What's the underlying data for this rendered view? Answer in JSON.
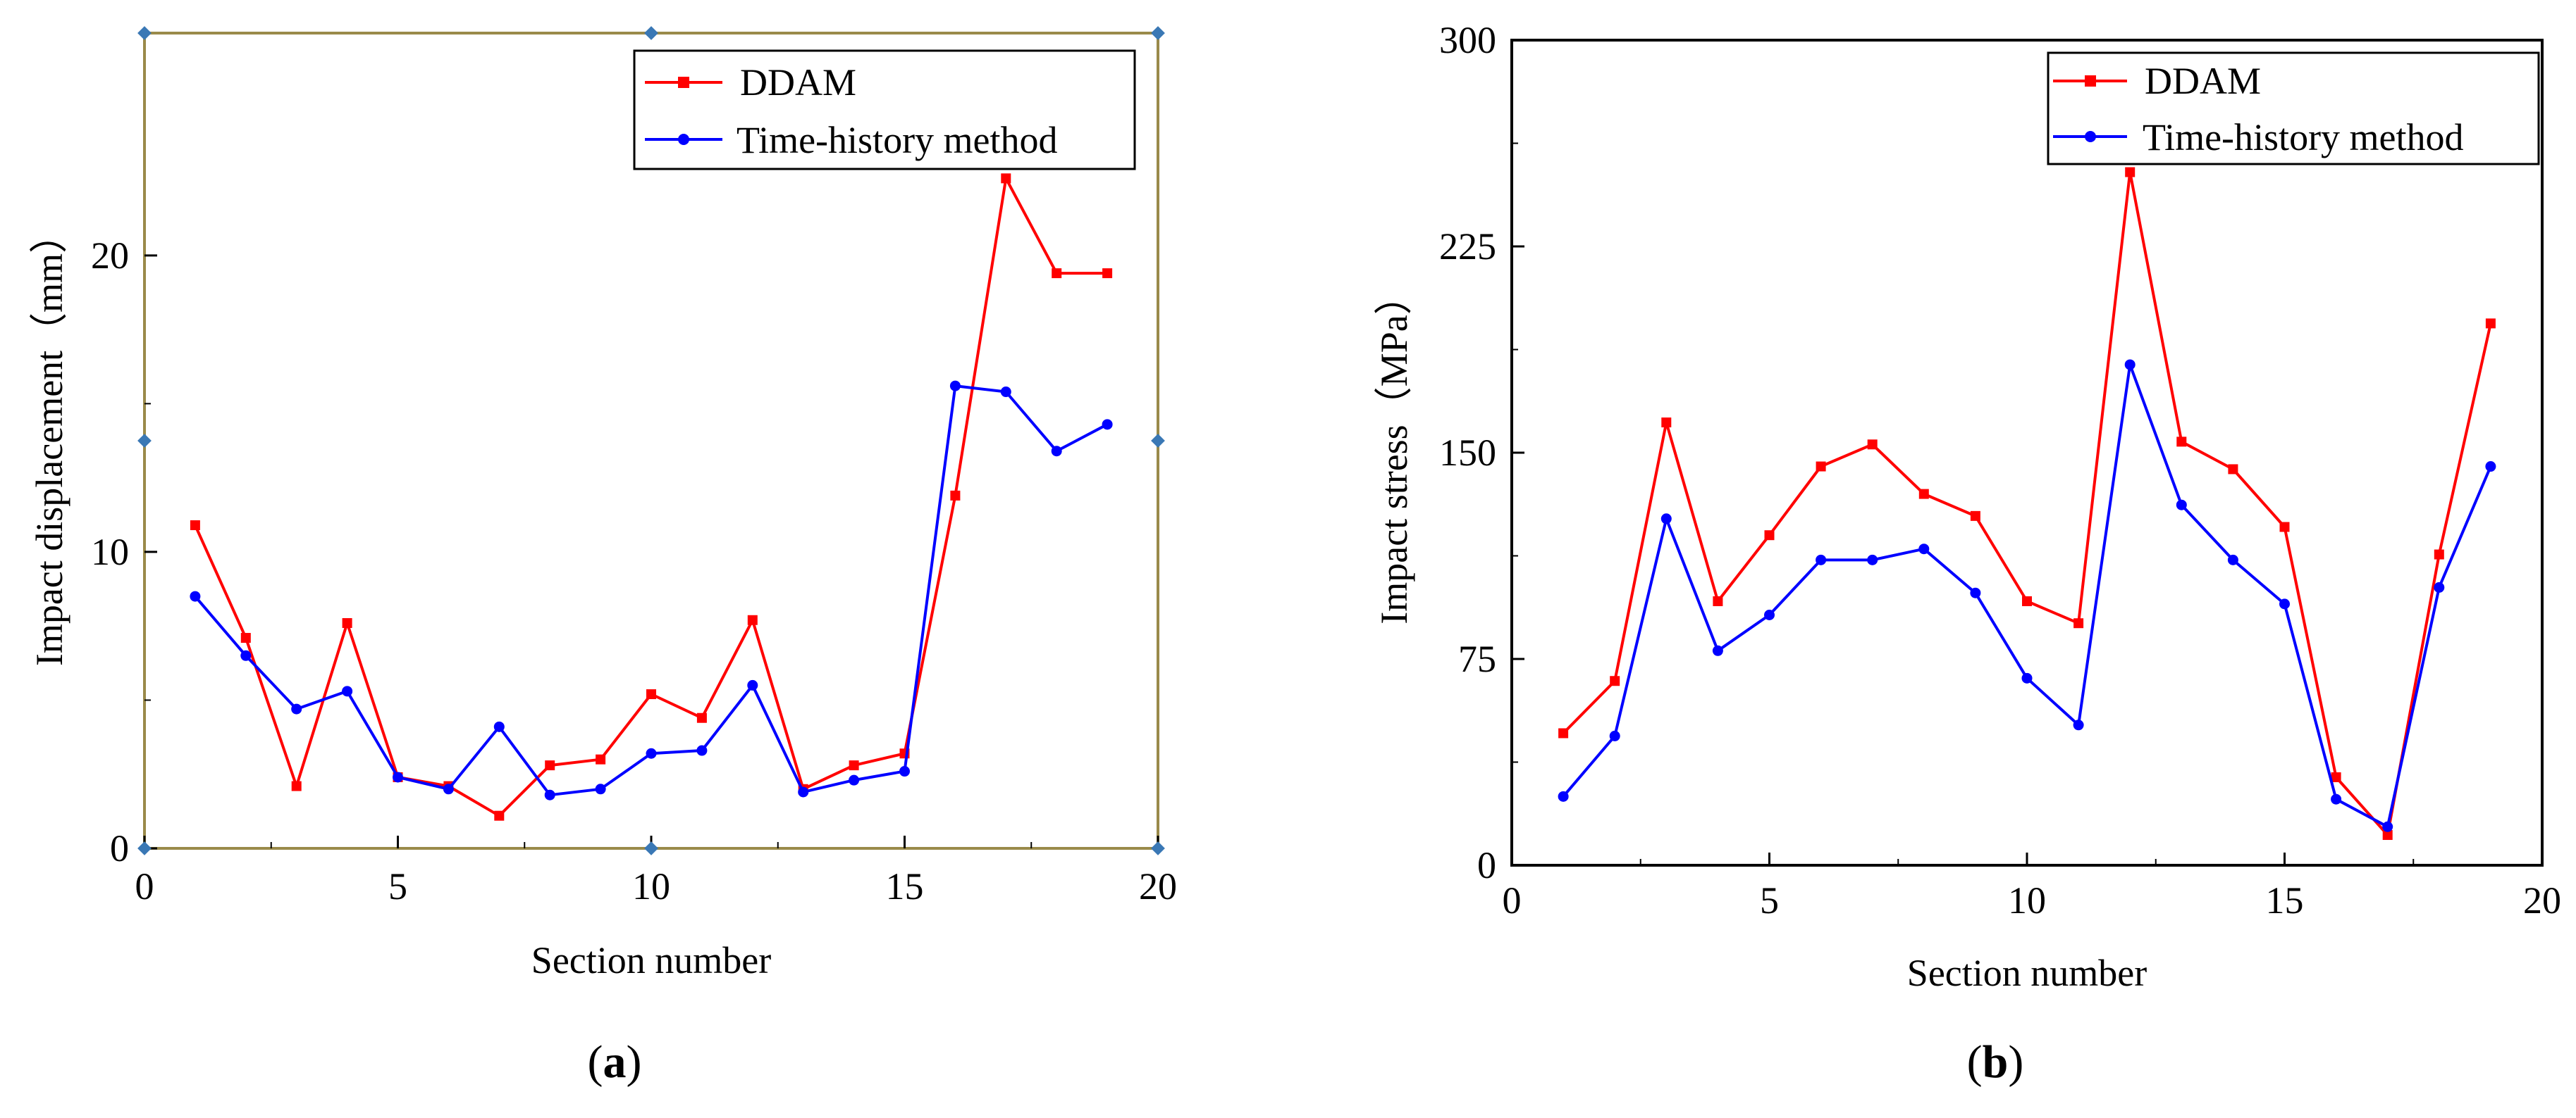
{
  "chart_data": [
    {
      "type": "line",
      "panel_label": "a",
      "title": "",
      "xlabel": "Section number",
      "ylabel": "Impact displacement（mm）",
      "xlim": [
        0,
        20
      ],
      "ylim": [
        0,
        27.5
      ],
      "xticks": [
        0,
        5,
        10,
        15,
        20
      ],
      "yticks": [
        0,
        10,
        20
      ],
      "xtick_labels": [
        "0",
        "5",
        "10",
        "15",
        "20"
      ],
      "ytick_labels": [
        "0",
        "10",
        "20"
      ],
      "grid": false,
      "legend_position": "top-right",
      "x": [
        1,
        2,
        3,
        4,
        5,
        6,
        7,
        8,
        9,
        10,
        11,
        12,
        13,
        14,
        15,
        16,
        17,
        18,
        19
      ],
      "series": [
        {
          "name": "DDAM",
          "color": "#ff0000",
          "marker": "square",
          "values": [
            10.9,
            7.1,
            2.1,
            7.6,
            2.4,
            2.1,
            1.1,
            2.8,
            3.0,
            5.2,
            4.4,
            7.7,
            2.0,
            2.8,
            3.2,
            11.9,
            22.6,
            19.4,
            19.4
          ]
        },
        {
          "name": "Time-history method",
          "color": "#0000ff",
          "marker": "circle",
          "values": [
            8.5,
            6.5,
            4.7,
            5.3,
            2.4,
            2.0,
            4.1,
            1.8,
            2.0,
            3.2,
            3.3,
            5.5,
            1.9,
            2.3,
            2.6,
            15.6,
            15.4,
            13.4,
            14.3
          ]
        }
      ]
    },
    {
      "type": "line",
      "panel_label": "b",
      "title": "",
      "xlabel": "Section number",
      "ylabel": "Impact stress（MPa）",
      "xlim": [
        0,
        20
      ],
      "ylim": [
        0,
        300
      ],
      "xticks": [
        0,
        5,
        10,
        15,
        20
      ],
      "yticks": [
        0,
        75,
        150,
        225,
        300
      ],
      "xtick_labels": [
        "0",
        "5",
        "10",
        "15",
        "20"
      ],
      "ytick_labels": [
        "0",
        "75",
        "150",
        "225",
        "300"
      ],
      "grid": false,
      "legend_position": "top-right",
      "x": [
        1,
        2,
        3,
        4,
        5,
        6,
        7,
        8,
        9,
        10,
        11,
        12,
        13,
        14,
        15,
        16,
        17,
        18,
        19
      ],
      "series": [
        {
          "name": "DDAM",
          "color": "#ff0000",
          "marker": "square",
          "values": [
            48,
            67,
            161,
            96,
            120,
            145,
            153,
            135,
            127,
            96,
            88,
            252,
            154,
            144,
            123,
            32,
            11,
            113,
            197
          ]
        },
        {
          "name": "Time-history method",
          "color": "#0000ff",
          "marker": "circle",
          "values": [
            25,
            47,
            126,
            78,
            91,
            111,
            111,
            115,
            99,
            68,
            51,
            182,
            131,
            111,
            95,
            24,
            14,
            101,
            145
          ]
        }
      ]
    }
  ]
}
